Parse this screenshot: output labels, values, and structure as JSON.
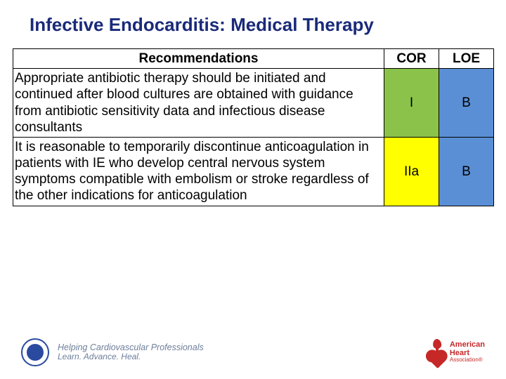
{
  "title": "Infective Endocarditis: Medical Therapy",
  "columns": {
    "rec": "Recommendations",
    "cor": "COR",
    "loe": "LOE"
  },
  "rows": [
    {
      "text": "Appropriate antibiotic therapy should be initiated and continued after blood cultures are obtained with guidance from antibiotic sensitivity data and infectious disease consultants",
      "cor": "I",
      "cor_bg": "#8bc34a",
      "loe": "B",
      "loe_bg": "#5a8fd6"
    },
    {
      "text": "It is reasonable to temporarily discontinue anticoagulation in patients with IE who develop central nervous system symptoms compatible with embolism or stroke regardless of the other indications for anticoagulation",
      "cor": "IIa",
      "cor_bg": "#ffff00",
      "loe": "B",
      "loe_bg": "#5a8fd6"
    }
  ],
  "footer": {
    "acc_line1": "Helping Cardiovascular Professionals",
    "acc_line2": "Learn. Advance. Heal.",
    "aha_line1": "American",
    "aha_line2": "Heart",
    "aha_line3": "Association®"
  },
  "colors": {
    "title": "#1a2a7a",
    "border": "#000000"
  }
}
